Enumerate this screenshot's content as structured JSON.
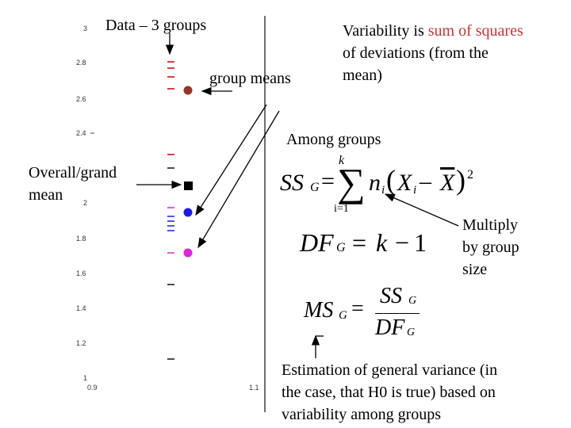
{
  "title": "Data – 3 groups",
  "group_means_label": "group means",
  "variability_note": {
    "prefix": "Variability is ",
    "highlight": "sum of squares",
    "line2": "of deviations (from the",
    "line3": "mean)"
  },
  "among_groups_label": "Among groups",
  "grand_mean_label": {
    "line1": "Overall/grand",
    "line2": "mean"
  },
  "multiply_note": {
    "line1": "Multiply",
    "line2": "by group",
    "line3": "size"
  },
  "estimation_note": {
    "line1": "Estimation of general variance (in",
    "line2": "the case, that H0 is true) based on",
    "line3": "variability among groups"
  },
  "y_ticks": [
    "3",
    "2.8",
    "2.6",
    "2.4",
    "2",
    "1.8",
    "1.6",
    "1.4",
    "1.2",
    "1"
  ],
  "x_ticks": [
    "0.9",
    "1.1"
  ],
  "formulas": {
    "ssg": {
      "lhs": "SS",
      "sub": "G",
      "eq": "=",
      "sum_top": "k",
      "sum_bottom": "i=1",
      "n": "n",
      "n_sub": "i",
      "x": "X",
      "x_sub": "i",
      "minus": "–",
      "xbar": "X",
      "exp": "2"
    },
    "dfg": {
      "lhs": "DF",
      "sub": "G",
      "eq": "=",
      "rhs_k": "k",
      "minus": "−",
      "one": "1"
    },
    "msg": {
      "lhs": "MS",
      "sub": "G",
      "eq": "=",
      "num": "SS",
      "num_sub": "G",
      "den": "DF",
      "den_sub": "G"
    }
  },
  "colors": {
    "red_point": "#993322",
    "blue_point": "#1a1aee",
    "magenta_point": "#dd22dd",
    "grand_mean": "#000000",
    "tick_red": "#cc0000",
    "tick_blue": "#1a1aee",
    "tick_magenta": "#dd22dd"
  }
}
